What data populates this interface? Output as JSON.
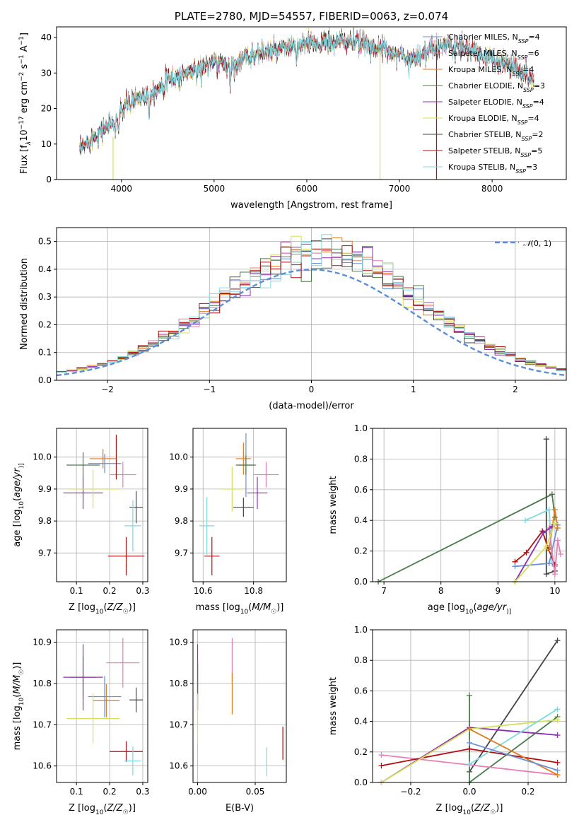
{
  "figure_title": "PLATE=2780, MJD=54557, FIBERID=0063, z=0.074",
  "colors": {
    "chabrier_miles": "#6a8fd8",
    "salpeter_miles": "#e87fb4",
    "kroupa_miles": "#e07b20",
    "chabrier_elodie": "#4a7a4a",
    "salpeter_elodie": "#8e2fb0",
    "kroupa_elodie": "#d4e157",
    "chabrier_stelib": "#444444",
    "salpeter_stelib": "#b01010",
    "kroupa_stelib": "#7fd8e0",
    "gaussian": "#5b8ed8",
    "grid": "#b0b0b0"
  },
  "chart_data": [
    {
      "id": "spectrum",
      "type": "line",
      "title": "PLATE=2780, MJD=54557, FIBERID=0063, z=0.074",
      "xlabel": "wavelength [Angstrom, rest frame]",
      "ylabel_parts": [
        "Flux [f",
        "λ",
        "10",
        "−17",
        " erg cm",
        "−2",
        " s",
        "−1",
        " A",
        "−1",
        "]"
      ],
      "xlim": [
        3300,
        8800
      ],
      "ylim": [
        0,
        43
      ],
      "xticks": [
        4000,
        5000,
        6000,
        7000,
        8000
      ],
      "yticks": [
        0,
        10,
        20,
        30,
        40
      ],
      "grid": false,
      "legend_position": "top-right",
      "legend": [
        {
          "base": "Chabrier MILES, N",
          "sub": "SSP",
          "suffix": "=4",
          "color_key": "chabrier_miles"
        },
        {
          "base": "Salpeter MILES, N",
          "sub": "SSP",
          "suffix": "=6",
          "color_key": "salpeter_miles"
        },
        {
          "base": "Kroupa MILES, N",
          "sub": "SSP",
          "suffix": "=4",
          "color_key": "kroupa_miles"
        },
        {
          "base": "Chabrier ELODIE, N",
          "sub": "SSP",
          "suffix": "=3",
          "color_key": "chabrier_elodie"
        },
        {
          "base": "Salpeter ELODIE, N",
          "sub": "SSP",
          "suffix": "=4",
          "color_key": "salpeter_elodie"
        },
        {
          "base": "Kroupa ELODIE, N",
          "sub": "SSP",
          "suffix": "=4",
          "color_key": "kroupa_elodie"
        },
        {
          "base": "Chabrier STELIB, N",
          "sub": "SSP",
          "suffix": "=2",
          "color_key": "chabrier_stelib"
        },
        {
          "base": "Salpeter STELIB, N",
          "sub": "SSP",
          "suffix": "=5",
          "color_key": "salpeter_stelib"
        },
        {
          "base": "Kroupa STELIB, N",
          "sub": "SSP",
          "suffix": "=3",
          "color_key": "kroupa_stelib"
        }
      ],
      "continuum_points": [
        [
          3550,
          8
        ],
        [
          3650,
          11
        ],
        [
          3750,
          13
        ],
        [
          3850,
          15
        ],
        [
          3950,
          17
        ],
        [
          4050,
          21
        ],
        [
          4150,
          23
        ],
        [
          4300,
          24
        ],
        [
          4450,
          27
        ],
        [
          4600,
          29
        ],
        [
          4800,
          31
        ],
        [
          5000,
          33
        ],
        [
          5200,
          32
        ],
        [
          5400,
          35
        ],
        [
          5600,
          36
        ],
        [
          5800,
          37
        ],
        [
          6000,
          38
        ],
        [
          6200,
          38.5
        ],
        [
          6400,
          39
        ],
        [
          6600,
          38.5
        ],
        [
          6800,
          37
        ],
        [
          7000,
          35
        ],
        [
          7100,
          34
        ],
        [
          7300,
          36
        ],
        [
          7500,
          38
        ],
        [
          7700,
          37
        ],
        [
          7900,
          35
        ],
        [
          8100,
          33
        ],
        [
          8300,
          31
        ],
        [
          8450,
          28
        ]
      ],
      "absorption_lines": [
        [
          3934,
          5
        ],
        [
          3969,
          5
        ],
        [
          4102,
          3
        ],
        [
          4300,
          6
        ],
        [
          4861,
          3
        ],
        [
          5175,
          7
        ],
        [
          5890,
          5
        ],
        [
          6563,
          3
        ],
        [
          7600,
          3
        ]
      ],
      "spikes": [
        {
          "x": 3910,
          "y_from": 0,
          "y_to": 12,
          "color_key": "kroupa_elodie"
        },
        {
          "x": 6790,
          "y_from": 0,
          "y_to": 36,
          "color_key": "kroupa_elodie"
        },
        {
          "x": 7400,
          "y_from": 0,
          "y_to": 38,
          "color_key": "salpeter_stelib"
        }
      ]
    },
    {
      "id": "residuals",
      "type": "histogram",
      "xlabel": "(data-model)/error",
      "ylabel": "Normed distribution",
      "xlim": [
        -2.5,
        2.5
      ],
      "ylim": [
        0,
        0.55
      ],
      "xticks": [
        -2,
        -1,
        0,
        1,
        2
      ],
      "xtick_labels": [
        "−2",
        "−1",
        "0",
        "1",
        "2"
      ],
      "yticks": [
        0.0,
        0.1,
        0.2,
        0.3,
        0.4,
        0.5
      ],
      "ytick_labels": [
        "0.0",
        "0.1",
        "0.2",
        "0.3",
        "0.4",
        "0.5"
      ],
      "grid": true,
      "legend_position": "top-right",
      "legend_label_parts": [
        "𝒩",
        "(0, 1)"
      ],
      "bin_width": 0.1,
      "gaussian": {
        "mean": 0,
        "sigma": 1
      }
    },
    {
      "id": "age_vs_Z",
      "type": "errorbar",
      "xlabel": "Z [log10(Z/Z☉)]",
      "xlabel_parts": [
        "Z [log",
        "10",
        "(",
        "Z/Z",
        "☉",
        ")]"
      ],
      "ylabel_parts": [
        "age  [log",
        "10",
        "(",
        "age/yr",
        ")]"
      ],
      "xlim": [
        0.04,
        0.315
      ],
      "ylim": [
        9.61,
        10.09
      ],
      "xticks": [
        0.1,
        0.2,
        0.3
      ],
      "xtick_labels": [
        "0.1",
        "0.2",
        "0.3"
      ],
      "yticks": [
        9.7,
        9.8,
        9.9,
        10.0
      ],
      "ytick_labels": [
        "9.7",
        "9.8",
        "9.9",
        "10.0"
      ],
      "grid": true,
      "points": [
        {
          "x": 0.185,
          "y": 9.98,
          "xerr": 0.05,
          "yerr": 0.03,
          "color_key": "chabrier_miles"
        },
        {
          "x": 0.24,
          "y": 9.945,
          "xerr": 0.04,
          "yerr": 0.04,
          "color_key": "salpeter_miles"
        },
        {
          "x": 0.18,
          "y": 9.995,
          "xerr": 0.04,
          "yerr": 0.03,
          "color_key": "kroupa_miles"
        },
        {
          "x": 0.12,
          "y": 9.975,
          "xerr": 0.05,
          "yerr": 0.04,
          "color_key": "chabrier_elodie"
        },
        {
          "x": 0.12,
          "y": 9.888,
          "xerr": 0.06,
          "yerr": 0.05,
          "color_key": "salpeter_elodie"
        },
        {
          "x": 0.15,
          "y": 9.9,
          "xerr": 0.08,
          "yerr": 0.06,
          "color_key": "kroupa_elodie"
        },
        {
          "x": 0.28,
          "y": 9.843,
          "xerr": 0.02,
          "yerr": 0.05,
          "color_key": "chabrier_stelib"
        },
        {
          "x": 0.25,
          "y": 9.69,
          "xerr": 0.055,
          "yerr": 0.06,
          "color_key": "salpeter_stelib"
        },
        {
          "x": 0.27,
          "y": 9.785,
          "xerr": 0.025,
          "yerr": 0.08,
          "color_key": "kroupa_stelib"
        },
        {
          "x": 0.22,
          "y": 10.0,
          "xerr": 0.0,
          "yerr": 0.07,
          "color_key": "salpeter_stelib"
        }
      ]
    },
    {
      "id": "age_vs_mass",
      "type": "errorbar",
      "xlabel_parts": [
        "mass [log",
        "10",
        "(",
        "M/M",
        "☉",
        ")]"
      ],
      "xlim": [
        10.56,
        10.93
      ],
      "ylim": [
        9.61,
        10.09
      ],
      "xticks": [
        10.6,
        10.8
      ],
      "xtick_labels": [
        "10.6",
        "10.8"
      ],
      "yticks": [
        9.7,
        9.8,
        9.9,
        10.0
      ],
      "ytick_labels": [
        "9.7",
        "9.8",
        "9.9",
        "10.0"
      ],
      "grid": true,
      "points": [
        {
          "x": 10.77,
          "y": 9.975,
          "xerr": 0.03,
          "yerr": 0.1,
          "color_key": "chabrier_miles"
        },
        {
          "x": 10.85,
          "y": 9.945,
          "xerr": 0.05,
          "yerr": 0.04,
          "color_key": "salpeter_miles"
        },
        {
          "x": 10.76,
          "y": 9.995,
          "xerr": 0.03,
          "yerr": 0.05,
          "color_key": "kroupa_miles"
        },
        {
          "x": 10.77,
          "y": 9.975,
          "xerr": 0.04,
          "yerr": 0.03,
          "color_key": "chabrier_elodie"
        },
        {
          "x": 10.815,
          "y": 9.888,
          "xerr": 0.04,
          "yerr": 0.05,
          "color_key": "salpeter_elodie"
        },
        {
          "x": 10.715,
          "y": 9.9,
          "xerr": 0.05,
          "yerr": 0.07,
          "color_key": "kroupa_elodie"
        },
        {
          "x": 10.76,
          "y": 9.843,
          "xerr": 0.04,
          "yerr": 0.03,
          "color_key": "chabrier_stelib"
        },
        {
          "x": 10.635,
          "y": 9.69,
          "xerr": 0.03,
          "yerr": 0.06,
          "color_key": "salpeter_stelib"
        },
        {
          "x": 10.615,
          "y": 9.785,
          "xerr": 0.03,
          "yerr": 0.09,
          "color_key": "kroupa_stelib"
        }
      ]
    },
    {
      "id": "massweight_vs_age",
      "type": "line",
      "xlabel_parts": [
        "age  [log",
        "10",
        "(",
        "age/yr",
        ")]"
      ],
      "ylabel": "mass weight",
      "xlim": [
        6.8,
        10.2
      ],
      "ylim": [
        0,
        1.0
      ],
      "xticks": [
        7,
        8,
        9,
        10
      ],
      "xtick_labels": [
        "7",
        "8",
        "9",
        "10"
      ],
      "yticks": [
        0.0,
        0.2,
        0.4,
        0.6,
        0.8,
        1.0
      ],
      "ytick_labels": [
        "0.0",
        "0.2",
        "0.4",
        "0.6",
        "0.8",
        "1.0"
      ],
      "grid": true,
      "series": [
        {
          "color_key": "chabrier_elodie",
          "x": [
            6.9,
            9.95,
            10.0
          ],
          "y": [
            0.0,
            0.57,
            0.42
          ]
        },
        {
          "color_key": "chabrier_stelib",
          "x": [
            9.85,
            9.85,
            10.0
          ],
          "y": [
            0.93,
            0.05,
            0.07
          ]
        },
        {
          "color_key": "kroupa_stelib",
          "x": [
            9.48,
            9.9,
            9.95,
            10.0
          ],
          "y": [
            0.4,
            0.47,
            0.12,
            0.1
          ]
        },
        {
          "color_key": "salpeter_stelib",
          "x": [
            9.3,
            9.5,
            9.78,
            9.88,
            10.0
          ],
          "y": [
            0.13,
            0.19,
            0.33,
            0.22,
            0.11
          ]
        },
        {
          "color_key": "chabrier_miles",
          "x": [
            9.3,
            9.9,
            10.05
          ],
          "y": [
            0.1,
            0.12,
            0.37
          ]
        },
        {
          "color_key": "kroupa_miles",
          "x": [
            9.9,
            10.0,
            10.05
          ],
          "y": [
            0.21,
            0.47,
            0.35
          ]
        },
        {
          "color_key": "salpeter_miles",
          "x": [
            9.9,
            10.0,
            10.05,
            10.1
          ],
          "y": [
            0.35,
            0.05,
            0.27,
            0.18
          ]
        },
        {
          "color_key": "salpeter_elodie",
          "x": [
            9.3,
            9.8,
            9.95
          ],
          "y": [
            0.0,
            0.32,
            0.36
          ]
        },
        {
          "color_key": "kroupa_elodie",
          "x": [
            9.3,
            9.85,
            10.0
          ],
          "y": [
            0.0,
            0.23,
            0.38
          ]
        }
      ]
    },
    {
      "id": "mass_vs_Z",
      "type": "errorbar",
      "xlabel_parts": [
        "Z [log",
        "10",
        "(",
        "Z/Z",
        "☉",
        ")]"
      ],
      "ylabel_parts": [
        "mass [log",
        "10",
        "(",
        "M/M",
        "☉",
        ")]"
      ],
      "xlim": [
        0.04,
        0.315
      ],
      "ylim": [
        10.56,
        10.93
      ],
      "xticks": [
        0.1,
        0.2,
        0.3
      ],
      "xtick_labels": [
        "0.1",
        "0.2",
        "0.3"
      ],
      "yticks": [
        10.6,
        10.7,
        10.8,
        10.9
      ],
      "ytick_labels": [
        "10.6",
        "10.7",
        "10.8",
        "10.9"
      ],
      "grid": true,
      "points": [
        {
          "x": 0.185,
          "y": 10.768,
          "xerr": 0.05,
          "yerr": 0.05,
          "color_key": "chabrier_miles"
        },
        {
          "x": 0.24,
          "y": 10.85,
          "xerr": 0.05,
          "yerr": 0.06,
          "color_key": "salpeter_miles"
        },
        {
          "x": 0.19,
          "y": 10.758,
          "xerr": 0.04,
          "yerr": 0.04,
          "color_key": "kroupa_miles"
        },
        {
          "x": 0.12,
          "y": 10.815,
          "xerr": 0.04,
          "yerr": 0.05,
          "color_key": "chabrier_elodie"
        },
        {
          "x": 0.12,
          "y": 10.815,
          "xerr": 0.06,
          "yerr": 0.08,
          "color_key": "salpeter_elodie"
        },
        {
          "x": 0.15,
          "y": 10.715,
          "xerr": 0.08,
          "yerr": 0.06,
          "color_key": "kroupa_elodie"
        },
        {
          "x": 0.28,
          "y": 10.76,
          "xerr": 0.02,
          "yerr": 0.03,
          "color_key": "chabrier_stelib"
        },
        {
          "x": 0.25,
          "y": 10.635,
          "xerr": 0.05,
          "yerr": 0.025,
          "color_key": "salpeter_stelib"
        },
        {
          "x": 0.27,
          "y": 10.612,
          "xerr": 0.025,
          "yerr": 0.035,
          "color_key": "kroupa_stelib"
        }
      ]
    },
    {
      "id": "mass_vs_ebv",
      "type": "errorbar",
      "xlabel": "E(B-V)",
      "xlim": [
        -0.004,
        0.077
      ],
      "ylim": [
        10.56,
        10.93
      ],
      "xticks": [
        0.0,
        0.05
      ],
      "xtick_labels": [
        "0.00",
        "0.05"
      ],
      "yticks": [
        10.6,
        10.7,
        10.8,
        10.9
      ],
      "ytick_labels": [
        "10.6",
        "10.7",
        "10.8",
        "10.9"
      ],
      "grid": true,
      "points": [
        {
          "x": 0.0,
          "y": 10.815,
          "xerr": 0.0,
          "yerr": 0.08,
          "color_key": "salpeter_elodie"
        },
        {
          "x": 0.0,
          "y": 10.79,
          "xerr": 0.0,
          "yerr": 0.055,
          "color_key": "chabrier_stelib"
        },
        {
          "x": 0.0,
          "y": 10.715,
          "xerr": 0.0,
          "yerr": 0.06,
          "color_key": "kroupa_elodie"
        },
        {
          "x": 0.0,
          "y": 10.815,
          "xerr": 0.0,
          "yerr": 0.04,
          "color_key": "chabrier_elodie"
        },
        {
          "x": 0.03,
          "y": 10.855,
          "xerr": 0.0,
          "yerr": 0.055,
          "color_key": "salpeter_miles"
        },
        {
          "x": 0.03,
          "y": 10.775,
          "xerr": 0.0,
          "yerr": 0.05,
          "color_key": "kroupa_miles"
        },
        {
          "x": 0.06,
          "y": 10.61,
          "xerr": 0.0,
          "yerr": 0.035,
          "color_key": "kroupa_stelib"
        },
        {
          "x": 0.074,
          "y": 10.655,
          "xerr": 0.0,
          "yerr": 0.04,
          "color_key": "salpeter_stelib"
        }
      ]
    },
    {
      "id": "massweight_vs_Z",
      "type": "line",
      "xlabel_parts": [
        "Z [log",
        "10",
        "(",
        "Z/Z",
        "☉",
        ")]"
      ],
      "ylabel": "mass weight",
      "xlim": [
        -0.33,
        0.33
      ],
      "ylim": [
        0,
        1.0
      ],
      "xticks": [
        -0.2,
        0.0,
        0.2
      ],
      "xtick_labels": [
        "−0.2",
        "0.0",
        "0.2"
      ],
      "yticks": [
        0.0,
        0.2,
        0.4,
        0.6,
        0.8,
        1.0
      ],
      "ytick_labels": [
        "0.0",
        "0.2",
        "0.4",
        "0.6",
        "0.8",
        "1.0"
      ],
      "grid": true,
      "series": [
        {
          "color_key": "chabrier_stelib",
          "x": [
            0.0,
            0.3
          ],
          "y": [
            0.07,
            0.93
          ]
        },
        {
          "color_key": "chabrier_elodie",
          "x": [
            0.0,
            0.0,
            0.3
          ],
          "y": [
            0.57,
            0.0,
            0.43
          ]
        },
        {
          "color_key": "salpeter_miles",
          "x": [
            -0.3,
            0.3
          ],
          "y": [
            0.18,
            0.05
          ]
        },
        {
          "color_key": "salpeter_stelib",
          "x": [
            -0.3,
            0.0,
            0.3
          ],
          "y": [
            0.11,
            0.22,
            0.13
          ]
        },
        {
          "color_key": "salpeter_elodie",
          "x": [
            -0.3,
            0.0,
            0.3
          ],
          "y": [
            0.0,
            0.36,
            0.31
          ]
        },
        {
          "color_key": "kroupa_elodie",
          "x": [
            -0.3,
            0.0,
            0.3
          ],
          "y": [
            0.0,
            0.35,
            0.41
          ]
        },
        {
          "color_key": "kroupa_stelib",
          "x": [
            0.0,
            0.3
          ],
          "y": [
            0.12,
            0.48
          ]
        },
        {
          "color_key": "kroupa_miles",
          "x": [
            0.0,
            0.3
          ],
          "y": [
            0.35,
            0.05
          ]
        },
        {
          "color_key": "chabrier_miles",
          "x": [
            0.0,
            0.3
          ],
          "y": [
            0.26,
            0.08
          ]
        }
      ]
    }
  ]
}
